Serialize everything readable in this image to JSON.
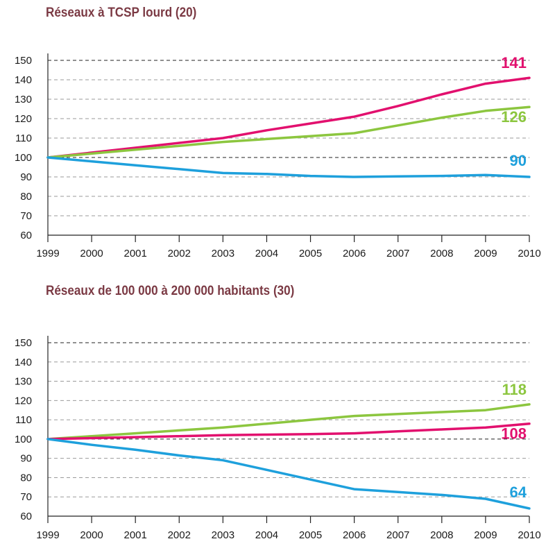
{
  "chart_data": [
    {
      "type": "line",
      "title": "Réseaux à TCSP lourd (20)",
      "x": [
        "1999",
        "2000",
        "2001",
        "2002",
        "2003",
        "2004",
        "2005",
        "2006",
        "2007",
        "2008",
        "2009",
        "2010"
      ],
      "ylim": [
        60,
        150
      ],
      "yticks": [
        60,
        70,
        80,
        90,
        100,
        110,
        120,
        130,
        140,
        150
      ],
      "series": [
        {
          "name": "pink",
          "color": "#e2106e",
          "end_label": "141",
          "values": [
            100,
            102.5,
            105,
            107.5,
            110,
            114,
            117.5,
            121,
            126.5,
            132.5,
            138,
            141
          ]
        },
        {
          "name": "green",
          "color": "#8cc63f",
          "end_label": "126",
          "values": [
            100,
            102,
            104,
            106,
            108,
            109.5,
            111,
            112.5,
            116.5,
            120.5,
            124,
            126
          ]
        },
        {
          "name": "blue",
          "color": "#1ea0dc",
          "end_label": "90",
          "values": [
            100,
            98,
            96,
            94,
            92,
            91.5,
            90.5,
            90,
            90.3,
            90.5,
            91,
            90
          ]
        }
      ]
    },
    {
      "type": "line",
      "title": "Réseaux de 100 000 à 200 000 habitants (30)",
      "x": [
        "1999",
        "2000",
        "2001",
        "2002",
        "2003",
        "2004",
        "2005",
        "2006",
        "2007",
        "2008",
        "2009",
        "2010"
      ],
      "ylim": [
        60,
        150
      ],
      "yticks": [
        60,
        70,
        80,
        90,
        100,
        110,
        120,
        130,
        140,
        150
      ],
      "series": [
        {
          "name": "green",
          "color": "#8cc63f",
          "end_label": "118",
          "values": [
            100,
            101.5,
            103,
            104.5,
            106,
            108,
            110,
            112,
            113,
            114,
            115,
            118
          ]
        },
        {
          "name": "pink",
          "color": "#e2106e",
          "end_label": "108",
          "values": [
            100,
            100.5,
            101,
            101.5,
            102,
            102.3,
            102.6,
            103,
            104,
            105,
            106,
            108
          ]
        },
        {
          "name": "blue",
          "color": "#1ea0dc",
          "end_label": "64",
          "values": [
            100,
            97,
            94.5,
            91.5,
            89,
            84,
            79,
            74,
            72.5,
            71,
            69,
            64
          ]
        }
      ]
    }
  ]
}
